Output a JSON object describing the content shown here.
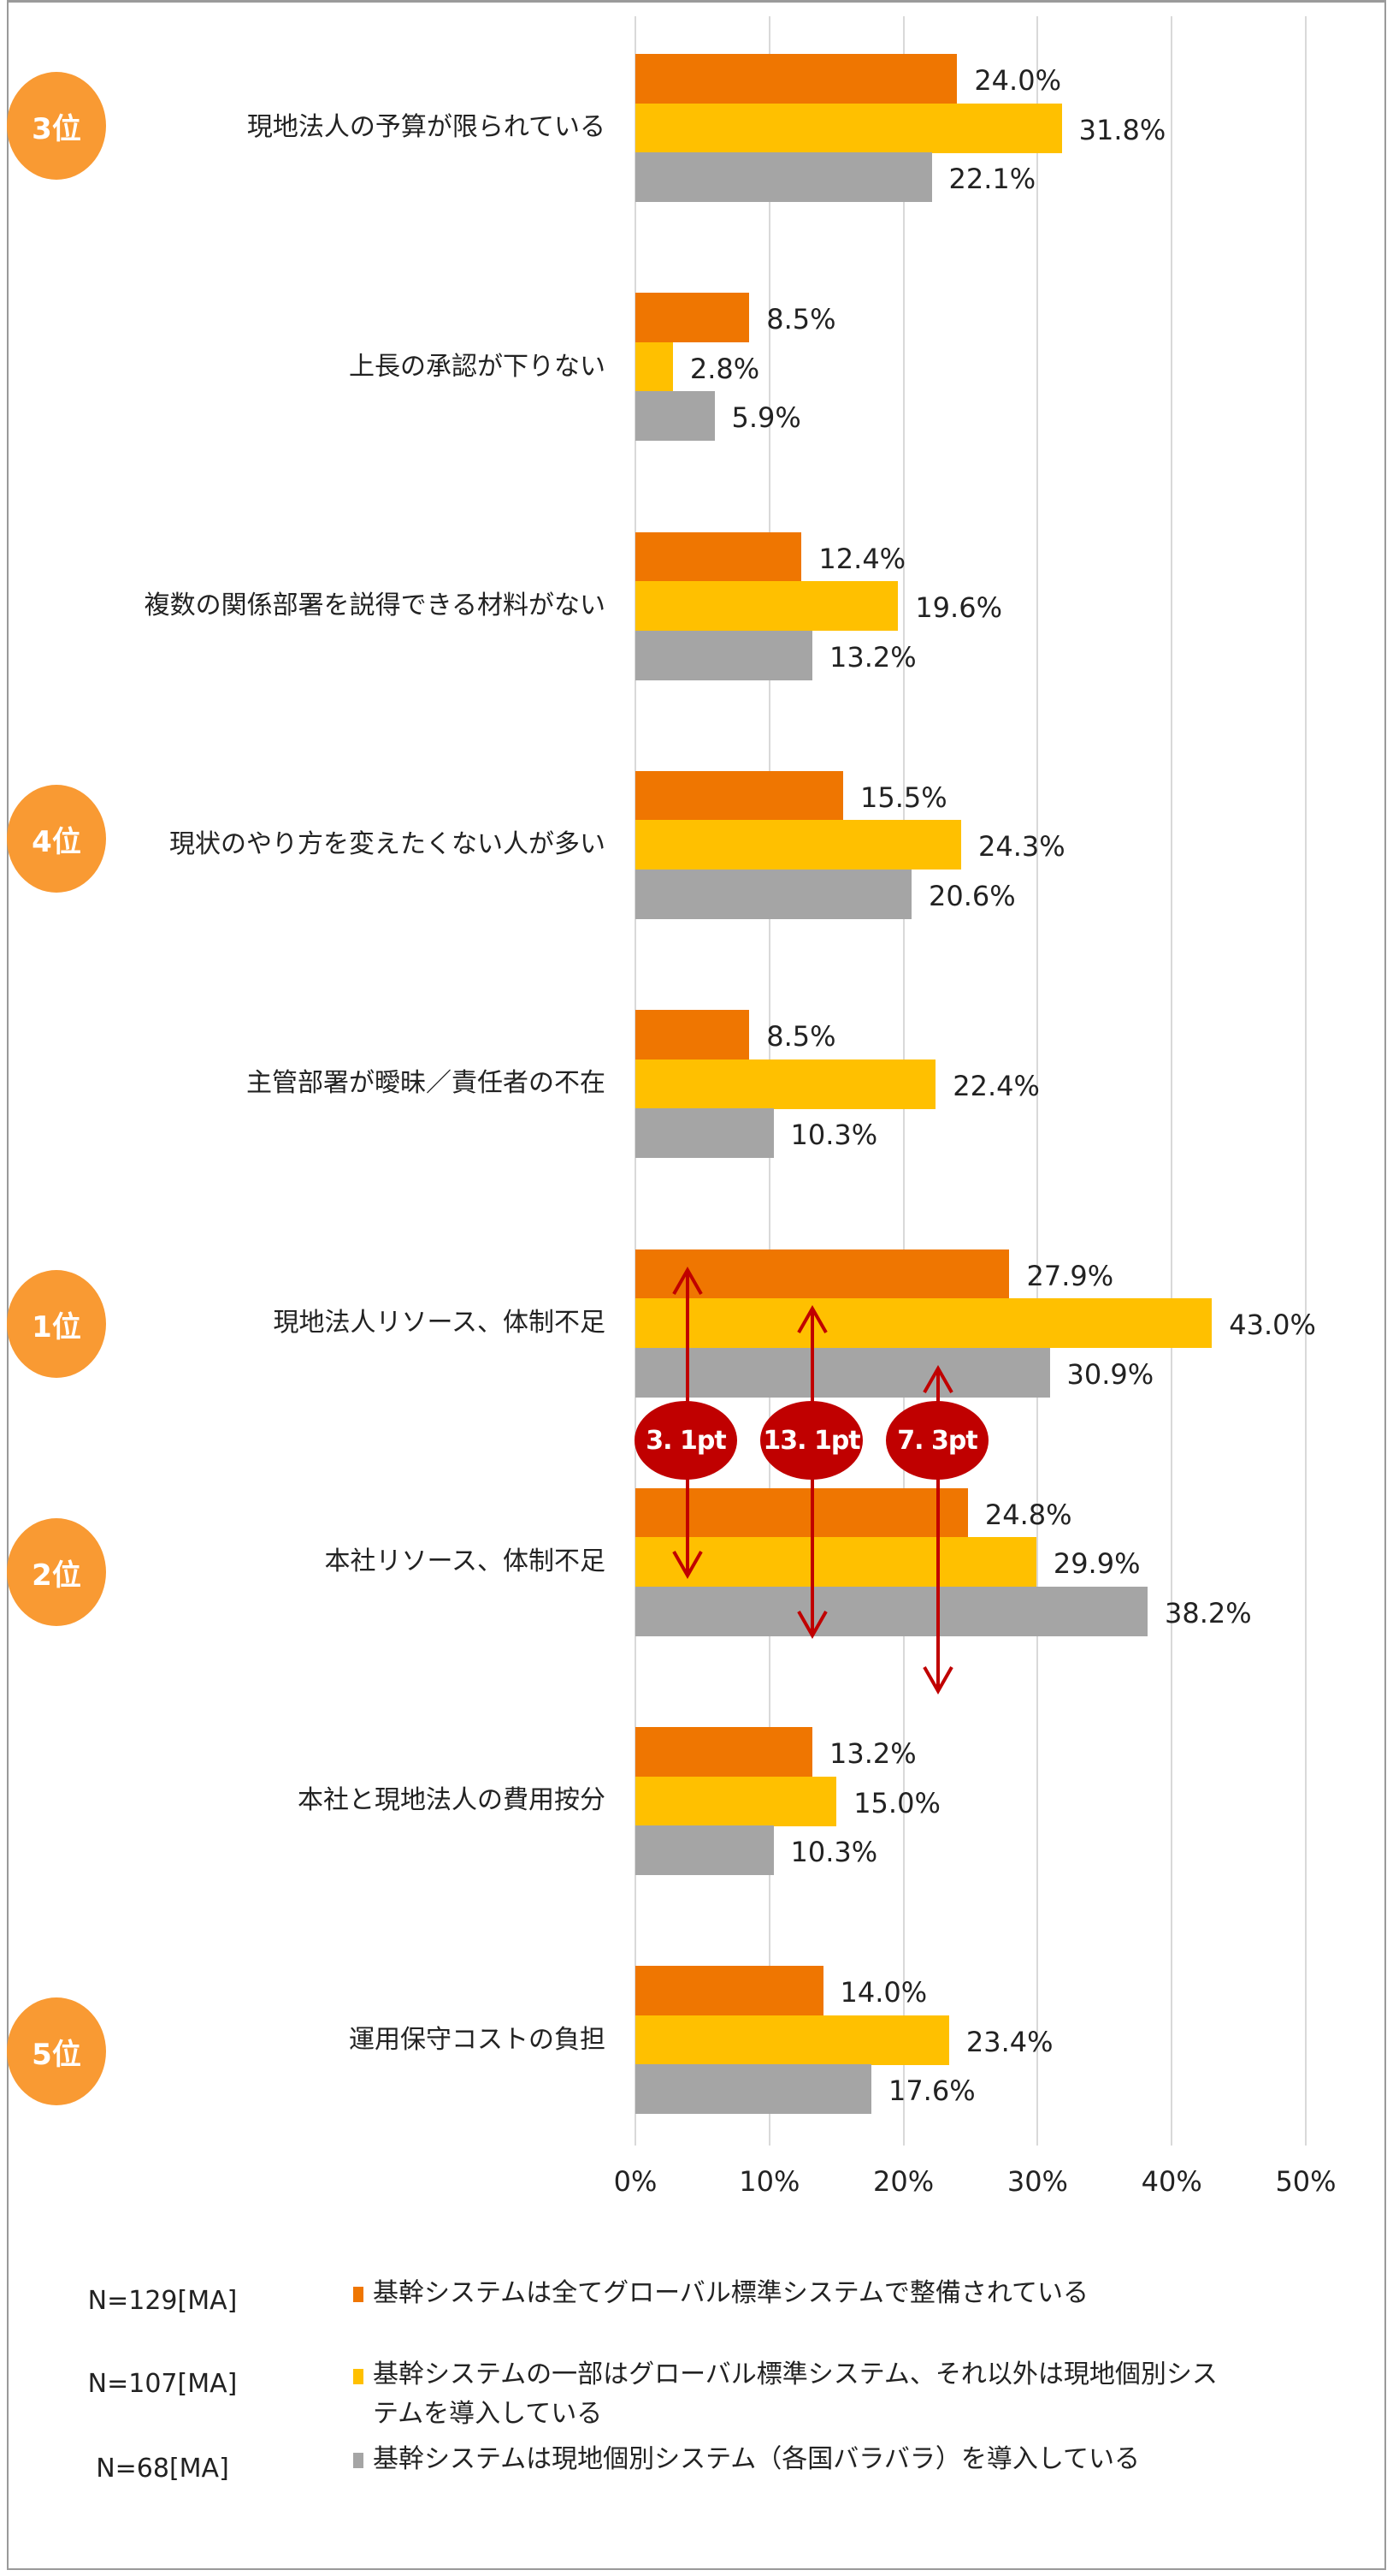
{
  "chart_data": {
    "type": "bar",
    "orientation": "horizontal",
    "categories": [
      "現地法人の予算が限られている",
      "上長の承認が下りない",
      "複数の関係部署を説得できる材料がない",
      "現状のやり方を変えたくない人が多い",
      "主管部署が曖昧/責任者の不在",
      "現地法人リソース、体制不足",
      "本社リソース、体制不足",
      "本社と現地法人の費用按分",
      "運用保守コストの負担"
    ],
    "series": [
      {
        "name": "基幹システムは全てグローバル標準システムで整備されている",
        "n": "N=129[MA]",
        "color": "#ef7601",
        "values": [
          24.0,
          8.5,
          12.4,
          15.5,
          8.5,
          27.9,
          24.8,
          13.2,
          14.0
        ]
      },
      {
        "name": "基幹システムの一部はグローバル標準システム、それ以外は現地個別システムを導入している",
        "n": "N=107[MA]",
        "color": "#ffc000",
        "values": [
          31.8,
          2.8,
          19.6,
          24.3,
          22.4,
          43.0,
          29.9,
          15.0,
          23.4
        ]
      },
      {
        "name": "基幹システムは現地個別システム(各国バラバラ)を導入している",
        "n": "N=68[MA]",
        "color": "#a5a5a5",
        "values": [
          22.1,
          5.9,
          13.2,
          20.6,
          10.3,
          30.9,
          38.2,
          10.3,
          17.6
        ]
      }
    ],
    "xlabel": "",
    "ylabel": "",
    "xlim": [
      0,
      50
    ],
    "xticks": [
      "0%",
      "10%",
      "20%",
      "30%",
      "40%",
      "50%"
    ],
    "grid": true,
    "legend_position": "bottom",
    "annotations": {
      "ranks": [
        {
          "category_index": 5,
          "label": "1位"
        },
        {
          "category_index": 6,
          "label": "2位"
        },
        {
          "category_index": 0,
          "label": "3位"
        },
        {
          "category_index": 3,
          "label": "4位"
        },
        {
          "category_index": 8,
          "label": "5位"
        }
      ],
      "differences": [
        {
          "label": "3. 1pt",
          "series_index": 0,
          "from": 5,
          "to": 6
        },
        {
          "label": "13. 1pt",
          "series_index": 1,
          "from": 5,
          "to": 6
        },
        {
          "label": "7. 3pt",
          "series_index": 2,
          "from": 5,
          "to": 6
        }
      ]
    }
  },
  "value_labels": [
    [
      "24.0%",
      "31.8%",
      "22.1%"
    ],
    [
      "8.5%",
      "2.8%",
      "5.9%"
    ],
    [
      "12.4%",
      "19.6%",
      "13.2%"
    ],
    [
      "15.5%",
      "24.3%",
      "20.6%"
    ],
    [
      "8.5%",
      "22.4%",
      "10.3%"
    ],
    [
      "27.9%",
      "43.0%",
      "30.9%"
    ],
    [
      "24.8%",
      "29.9%",
      "38.2%"
    ],
    [
      "13.2%",
      "15.0%",
      "10.3%"
    ],
    [
      "14.0%",
      "23.4%",
      "17.6%"
    ]
  ],
  "category_labels": [
    "現地法人の予算が限られている",
    "上長の承認が下りない",
    "複数の関係部署を説得できる材料がない",
    "現状のやり方を変えたくない人が多い",
    "主管部署が曖昧／責任者の不在",
    "現地法人リソース、体制不足",
    "本社リソース、体制不足",
    "本社と現地法人の費用按分",
    "運用保守コストの負担"
  ],
  "ranks": {
    "r1": "1位",
    "r2": "2位",
    "r3": "3位",
    "r4": "4位",
    "r5": "5位"
  },
  "diff_labels": {
    "a": "3. 1pt",
    "b": "13. 1pt",
    "c": "7. 3pt"
  },
  "ticks": [
    "0%",
    "10%",
    "20%",
    "30%",
    "40%",
    "50%"
  ],
  "legend": [
    {
      "n": "N=129[MA]",
      "line1": "基幹システムは全てグローバル標準システムで整備されている",
      "line2": ""
    },
    {
      "n": "N=107[MA]",
      "line1": "基幹システムの一部はグローバル標準システム、それ以外は現地個別シス",
      "line2": "テムを導入している"
    },
    {
      "n": "N=68[MA]",
      "line1": "基幹システムは現地個別システム（各国バラバラ）を導入している",
      "line2": ""
    }
  ],
  "colors": {
    "series1": "#ef7601",
    "series2": "#ffc000",
    "series3": "#a5a5a5",
    "rank_badge": "#f99a33",
    "diff_badge": "#c00000",
    "grid": "#d9d9d9"
  }
}
